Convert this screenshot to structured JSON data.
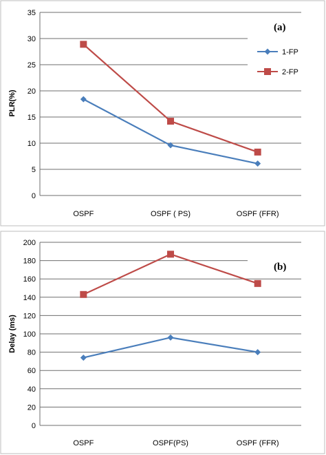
{
  "colors": {
    "series_1": "#4a7ebb",
    "series_2": "#be4b48"
  },
  "legend": {
    "entries": [
      "1-FP",
      "2-FP"
    ]
  },
  "chart_data": [
    {
      "type": "line",
      "title": "",
      "panel_label": "(a)",
      "ylabel": "PLR(%)",
      "xlabel": "",
      "categories": [
        "OSPF",
        "OSPF ( PS)",
        "OSPF (FFR)"
      ],
      "ylim": [
        0,
        35
      ],
      "yticks": [
        0,
        5,
        10,
        15,
        20,
        25,
        30,
        35
      ],
      "grid": true,
      "legend_position": "right",
      "series": [
        {
          "name": "1-FP",
          "marker": "diamond",
          "values": [
            18.4,
            9.6,
            6.1
          ]
        },
        {
          "name": "2-FP",
          "marker": "square",
          "values": [
            28.9,
            14.2,
            8.3
          ]
        }
      ]
    },
    {
      "type": "line",
      "title": "",
      "panel_label": "(b)",
      "ylabel": "Delay (ms)",
      "xlabel": "",
      "categories": [
        "OSPF",
        "OSPF(PS)",
        "OSPF (FFR)"
      ],
      "ylim": [
        0,
        200
      ],
      "yticks": [
        0,
        20,
        40,
        60,
        80,
        100,
        120,
        140,
        160,
        180,
        200
      ],
      "grid": true,
      "series": [
        {
          "name": "1-FP",
          "marker": "diamond",
          "values": [
            74,
            96,
            80
          ]
        },
        {
          "name": "2-FP",
          "marker": "square",
          "values": [
            143,
            187,
            155
          ]
        }
      ]
    }
  ]
}
